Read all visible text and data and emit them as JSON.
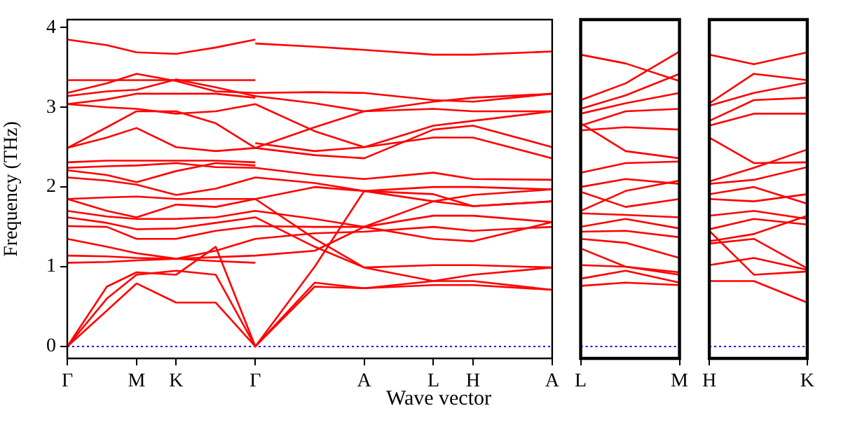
{
  "chart_data": [
    {
      "type": "line",
      "xlabel": "Wave vector",
      "ylabel": "Frequency (THz)",
      "marker": "none",
      "categories": [
        "Γ",
        null,
        null,
        null,
        null,
        null,
        null,
        "M",
        null,
        null,
        null,
        "K",
        null,
        null,
        null,
        null,
        null,
        null,
        null,
        "Γ",
        null,
        null,
        null,
        null,
        null,
        null,
        null,
        null,
        null,
        null,
        "A",
        null,
        null,
        null,
        null,
        null,
        null,
        "L",
        null,
        null,
        null,
        "H",
        null,
        null,
        null,
        null,
        null,
        null,
        null,
        "A"
      ],
      "ylim": [
        -0.15,
        4.1
      ],
      "yticks": [
        0,
        1,
        2,
        3,
        4
      ],
      "ref_lines": [
        {
          "axis": "y",
          "value": 0,
          "color": "#0000ff",
          "line_style": "dotted"
        }
      ],
      "series": [
        {
          "color": "#ff0000",
          "values": [
            3.85,
            null,
            null,
            null,
            3.78,
            null,
            null,
            3.69,
            null,
            null,
            null,
            3.67,
            null,
            null,
            null,
            3.75,
            null,
            null,
            null,
            3.85,
            null,
            null,
            null,
            null,
            null,
            null,
            null,
            null,
            null,
            null,
            null,
            null,
            null,
            null,
            null,
            null,
            null,
            null,
            null,
            null,
            null,
            null,
            null,
            null,
            null,
            null,
            null,
            null,
            null,
            null
          ]
        },
        {
          "color": "#ff0000",
          "values": [
            null,
            null,
            null,
            null,
            null,
            null,
            null,
            null,
            null,
            null,
            null,
            null,
            null,
            null,
            null,
            null,
            null,
            null,
            null,
            3.8,
            null,
            null,
            null,
            null,
            null,
            3.76,
            null,
            null,
            null,
            null,
            3.72,
            null,
            null,
            null,
            null,
            null,
            null,
            3.66,
            null,
            null,
            null,
            3.66,
            null,
            null,
            null,
            null,
            null,
            null,
            null,
            3.7
          ]
        },
        {
          "color": "#ff0000",
          "values": [
            3.34,
            null,
            null,
            null,
            3.34,
            null,
            null,
            3.34,
            null,
            null,
            null,
            3.34,
            null,
            null,
            null,
            3.34,
            null,
            null,
            null,
            3.34,
            null,
            null,
            null,
            null,
            null,
            null,
            null,
            null,
            null,
            null,
            null,
            null,
            null,
            null,
            null,
            null,
            null,
            null,
            null,
            null,
            null,
            null,
            null,
            null,
            null,
            null,
            null,
            null,
            null,
            null
          ]
        },
        {
          "color": "#ff0000",
          "values": [
            3.18,
            null,
            null,
            null,
            3.3,
            null,
            null,
            3.42,
            null,
            null,
            null,
            3.33,
            null,
            null,
            null,
            3.2,
            null,
            null,
            null,
            3.18,
            null,
            null,
            null,
            null,
            null,
            3.19,
            null,
            null,
            null,
            null,
            3.18,
            null,
            null,
            null,
            null,
            null,
            null,
            3.09,
            null,
            null,
            null,
            3.07,
            null,
            null,
            null,
            null,
            null,
            null,
            null,
            3.17
          ]
        },
        {
          "color": "#ff0000",
          "values": [
            3.14,
            null,
            null,
            null,
            3.2,
            null,
            null,
            3.22,
            null,
            null,
            null,
            3.35,
            null,
            null,
            null,
            3.25,
            null,
            null,
            null,
            3.14,
            null,
            null,
            null,
            null,
            null,
            3.05,
            null,
            null,
            null,
            null,
            2.95,
            null,
            null,
            null,
            null,
            null,
            null,
            3.07,
            null,
            null,
            null,
            3.12,
            null,
            null,
            null,
            null,
            null,
            null,
            null,
            3.17
          ]
        },
        {
          "color": "#ff0000",
          "values": [
            3.04,
            null,
            null,
            null,
            3.1,
            null,
            null,
            3.17,
            null,
            null,
            null,
            3.17,
            null,
            null,
            null,
            3.17,
            null,
            null,
            null,
            3.12,
            null,
            null,
            null,
            null,
            null,
            null,
            null,
            null,
            null,
            null,
            null,
            null,
            null,
            null,
            null,
            null,
            null,
            null,
            null,
            null,
            null,
            null,
            null,
            null,
            null,
            null,
            null,
            null,
            null,
            null
          ]
        },
        {
          "color": "#ff0000",
          "values": [
            3.04,
            null,
            null,
            null,
            3.0,
            null,
            null,
            2.98,
            null,
            null,
            null,
            2.92,
            null,
            null,
            null,
            2.95,
            null,
            null,
            null,
            3.04,
            null,
            null,
            null,
            null,
            null,
            2.7,
            null,
            null,
            null,
            null,
            2.5,
            null,
            null,
            null,
            null,
            null,
            null,
            2.77,
            null,
            null,
            null,
            2.83,
            null,
            null,
            null,
            null,
            null,
            null,
            null,
            2.95
          ]
        },
        {
          "color": "#ff0000",
          "values": [
            2.49,
            null,
            null,
            null,
            2.75,
            null,
            null,
            2.95,
            null,
            null,
            null,
            2.95,
            null,
            null,
            null,
            2.8,
            null,
            null,
            null,
            2.49,
            null,
            null,
            null,
            null,
            null,
            2.75,
            null,
            null,
            null,
            null,
            2.95,
            null,
            null,
            null,
            null,
            null,
            null,
            2.98,
            null,
            null,
            null,
            2.95,
            null,
            null,
            null,
            null,
            null,
            null,
            null,
            2.95
          ]
        },
        {
          "color": "#ff0000",
          "values": [
            2.49,
            null,
            null,
            null,
            2.62,
            null,
            null,
            2.74,
            null,
            null,
            null,
            2.5,
            null,
            null,
            null,
            2.45,
            null,
            null,
            null,
            2.49,
            null,
            null,
            null,
            null,
            null,
            2.4,
            null,
            null,
            null,
            null,
            2.36,
            null,
            null,
            null,
            null,
            null,
            null,
            2.72,
            null,
            null,
            null,
            2.77,
            null,
            null,
            null,
            null,
            null,
            null,
            null,
            2.5
          ]
        },
        {
          "color": "#ff0000",
          "values": [
            null,
            null,
            null,
            null,
            null,
            null,
            null,
            null,
            null,
            null,
            null,
            null,
            null,
            null,
            null,
            null,
            null,
            null,
            null,
            2.55,
            null,
            null,
            null,
            null,
            null,
            2.45,
            null,
            null,
            null,
            null,
            2.5,
            null,
            null,
            null,
            null,
            null,
            null,
            2.62,
            null,
            null,
            null,
            2.62,
            null,
            null,
            null,
            null,
            null,
            null,
            null,
            2.36
          ]
        },
        {
          "color": "#ff0000",
          "values": [
            2.31,
            null,
            null,
            null,
            2.33,
            null,
            null,
            2.33,
            null,
            null,
            null,
            2.33,
            null,
            null,
            null,
            2.33,
            null,
            null,
            null,
            2.31,
            null,
            null,
            null,
            null,
            null,
            null,
            null,
            null,
            null,
            null,
            null,
            null,
            null,
            null,
            null,
            null,
            null,
            null,
            null,
            null,
            null,
            null,
            null,
            null,
            null,
            null,
            null,
            null,
            null,
            null
          ]
        },
        {
          "color": "#ff0000",
          "values": [
            2.24,
            null,
            null,
            null,
            2.26,
            null,
            null,
            2.27,
            null,
            null,
            null,
            2.3,
            null,
            null,
            null,
            2.25,
            null,
            null,
            null,
            2.24,
            null,
            null,
            null,
            null,
            null,
            2.15,
            null,
            null,
            null,
            null,
            2.1,
            null,
            null,
            null,
            null,
            null,
            null,
            2.18,
            null,
            null,
            null,
            2.1,
            null,
            null,
            null,
            null,
            null,
            null,
            null,
            2.09
          ]
        },
        {
          "color": "#ff0000",
          "values": [
            2.21,
            null,
            null,
            null,
            2.15,
            null,
            null,
            2.06,
            null,
            null,
            null,
            2.2,
            null,
            null,
            null,
            2.3,
            null,
            null,
            null,
            2.27,
            null,
            null,
            null,
            null,
            null,
            null,
            null,
            null,
            null,
            null,
            null,
            null,
            null,
            null,
            null,
            null,
            null,
            null,
            null,
            null,
            null,
            null,
            null,
            null,
            null,
            null,
            null,
            null,
            null,
            null
          ]
        },
        {
          "color": "#ff0000",
          "values": [
            2.12,
            null,
            null,
            null,
            2.08,
            null,
            null,
            2.03,
            null,
            null,
            null,
            1.9,
            null,
            null,
            null,
            1.98,
            null,
            null,
            null,
            2.12,
            null,
            null,
            null,
            null,
            null,
            2.05,
            null,
            null,
            null,
            null,
            1.95,
            null,
            null,
            null,
            null,
            null,
            null,
            2.0,
            null,
            null,
            null,
            2.0,
            null,
            null,
            null,
            null,
            null,
            null,
            null,
            1.97
          ]
        },
        {
          "color": "#ff0000",
          "values": [
            1.85,
            null,
            null,
            null,
            1.87,
            null,
            null,
            1.88,
            null,
            null,
            null,
            1.85,
            null,
            null,
            null,
            1.85,
            null,
            null,
            null,
            1.85,
            null,
            null,
            null,
            null,
            null,
            2.0,
            null,
            null,
            null,
            null,
            1.95,
            null,
            null,
            null,
            null,
            null,
            null,
            1.91,
            null,
            null,
            null,
            1.76,
            null,
            null,
            null,
            null,
            null,
            null,
            null,
            1.82
          ]
        },
        {
          "color": "#ff0000",
          "values": [
            1.85,
            null,
            null,
            null,
            1.7,
            null,
            null,
            1.62,
            null,
            null,
            null,
            1.78,
            null,
            null,
            null,
            1.75,
            null,
            null,
            null,
            1.85,
            null,
            null,
            null,
            null,
            null,
            1.35,
            null,
            null,
            null,
            null,
            0.99,
            null,
            null,
            null,
            null,
            null,
            null,
            0.82,
            null,
            null,
            null,
            0.9,
            null,
            null,
            null,
            null,
            null,
            null,
            null,
            0.99
          ]
        },
        {
          "color": "#ff0000",
          "values": [
            1.7,
            null,
            null,
            null,
            1.63,
            null,
            null,
            1.6,
            null,
            null,
            null,
            1.6,
            null,
            null,
            null,
            1.62,
            null,
            null,
            null,
            1.7,
            null,
            null,
            null,
            null,
            null,
            1.6,
            null,
            null,
            null,
            null,
            1.5,
            null,
            null,
            null,
            null,
            null,
            null,
            1.82,
            null,
            null,
            null,
            1.9,
            null,
            null,
            null,
            null,
            null,
            null,
            null,
            1.97
          ]
        },
        {
          "color": "#ff0000",
          "values": [
            1.62,
            null,
            null,
            null,
            1.55,
            null,
            null,
            1.47,
            null,
            null,
            null,
            1.48,
            null,
            null,
            null,
            1.55,
            null,
            null,
            null,
            1.62,
            null,
            null,
            null,
            null,
            null,
            1.25,
            null,
            null,
            null,
            null,
            0.99,
            null,
            null,
            null,
            null,
            null,
            null,
            1.02,
            null,
            null,
            null,
            1.02,
            null,
            null,
            null,
            null,
            null,
            null,
            null,
            0.99
          ]
        },
        {
          "color": "#ff0000",
          "values": [
            1.51,
            null,
            null,
            null,
            1.5,
            null,
            null,
            1.35,
            null,
            null,
            null,
            1.35,
            null,
            null,
            null,
            1.45,
            null,
            null,
            null,
            1.51,
            null,
            null,
            null,
            null,
            null,
            1.5,
            null,
            null,
            null,
            null,
            1.5,
            null,
            null,
            null,
            null,
            null,
            null,
            1.64,
            null,
            null,
            null,
            1.64,
            null,
            null,
            null,
            null,
            null,
            null,
            null,
            1.56
          ]
        },
        {
          "color": "#ff0000",
          "values": [
            1.35,
            null,
            null,
            null,
            1.25,
            null,
            null,
            1.17,
            null,
            null,
            null,
            1.1,
            null,
            null,
            null,
            1.2,
            null,
            null,
            null,
            1.35,
            null,
            null,
            null,
            null,
            null,
            1.42,
            null,
            null,
            null,
            null,
            1.44,
            null,
            null,
            null,
            null,
            null,
            null,
            1.5,
            null,
            null,
            null,
            1.45,
            null,
            null,
            null,
            null,
            null,
            null,
            null,
            1.5
          ]
        },
        {
          "color": "#ff0000",
          "values": [
            1.14,
            null,
            null,
            null,
            1.13,
            null,
            null,
            1.11,
            null,
            null,
            null,
            1.1,
            null,
            null,
            null,
            1.12,
            null,
            null,
            null,
            1.14,
            null,
            null,
            null,
            null,
            null,
            1.2,
            null,
            null,
            null,
            null,
            1.5,
            null,
            null,
            null,
            null,
            null,
            null,
            1.35,
            null,
            null,
            null,
            1.32,
            null,
            null,
            null,
            null,
            null,
            null,
            null,
            1.56
          ]
        },
        {
          "color": "#ff0000",
          "values": [
            1.05,
            null,
            null,
            null,
            1.06,
            null,
            null,
            1.08,
            null,
            null,
            null,
            1.1,
            null,
            null,
            null,
            1.07,
            null,
            null,
            null,
            1.05,
            null,
            null,
            null,
            null,
            null,
            null,
            null,
            null,
            null,
            null,
            null,
            null,
            null,
            null,
            null,
            null,
            null,
            null,
            null,
            null,
            null,
            null,
            null,
            null,
            null,
            null,
            null,
            null,
            null,
            null
          ]
        },
        {
          "color": "#ff0000",
          "values": [
            0,
            null,
            null,
            null,
            0.75,
            null,
            null,
            0.93,
            null,
            null,
            null,
            0.9,
            null,
            null,
            null,
            1.25,
            null,
            null,
            null,
            0,
            null,
            null,
            null,
            null,
            null,
            1.0,
            null,
            null,
            null,
            null,
            1.95,
            null,
            null,
            null,
            null,
            null,
            null,
            1.82,
            null,
            null,
            null,
            1.76,
            null,
            null,
            null,
            null,
            null,
            null,
            null,
            1.82
          ]
        },
        {
          "color": "#ff0000",
          "values": [
            0,
            null,
            null,
            null,
            0.6,
            null,
            null,
            0.9,
            null,
            null,
            null,
            0.95,
            null,
            null,
            null,
            0.9,
            null,
            null,
            null,
            0,
            null,
            null,
            null,
            null,
            null,
            0.8,
            null,
            null,
            null,
            null,
            0.73,
            null,
            null,
            null,
            null,
            null,
            null,
            0.77,
            null,
            null,
            null,
            0.77,
            null,
            null,
            null,
            null,
            null,
            null,
            null,
            0.71
          ]
        },
        {
          "color": "#ff0000",
          "values": [
            0,
            null,
            null,
            null,
            0.45,
            null,
            null,
            0.79,
            null,
            null,
            null,
            0.55,
            null,
            null,
            null,
            0.55,
            null,
            null,
            null,
            0,
            null,
            null,
            null,
            null,
            null,
            0.75,
            null,
            null,
            null,
            null,
            0.73,
            null,
            null,
            null,
            null,
            null,
            null,
            0.82,
            null,
            null,
            null,
            0.82,
            null,
            null,
            null,
            null,
            null,
            null,
            null,
            0.71
          ]
        }
      ]
    },
    {
      "type": "line",
      "marker": "none",
      "tick_labels": "x",
      "categories": [
        "L",
        null,
        null,
        null,
        null,
        null,
        null,
        null,
        null,
        null,
        null,
        "M"
      ],
      "ylim": [
        -0.15,
        4.1
      ],
      "yticks": [
        0,
        1,
        2,
        3,
        4
      ],
      "ref_lines": [
        {
          "axis": "y",
          "value": 0,
          "color": "#0000ff",
          "line_style": "dotted"
        }
      ],
      "series": [
        {
          "color": "#ff0000",
          "values": [
            3.66,
            null,
            null,
            null,
            null,
            3.55,
            null,
            null,
            null,
            null,
            null,
            3.33
          ]
        },
        {
          "color": "#ff0000",
          "values": [
            3.09,
            null,
            null,
            null,
            null,
            3.3,
            null,
            null,
            null,
            null,
            null,
            3.7
          ]
        },
        {
          "color": "#ff0000",
          "values": [
            2.98,
            null,
            null,
            null,
            null,
            3.15,
            null,
            null,
            null,
            null,
            null,
            3.42
          ]
        },
        {
          "color": "#ff0000",
          "values": [
            2.92,
            null,
            null,
            null,
            null,
            3.05,
            null,
            null,
            null,
            null,
            null,
            3.18
          ]
        },
        {
          "color": "#ff0000",
          "values": [
            2.77,
            null,
            null,
            null,
            null,
            2.95,
            null,
            null,
            null,
            null,
            null,
            2.98
          ]
        },
        {
          "color": "#ff0000",
          "values": [
            2.71,
            null,
            null,
            null,
            null,
            2.75,
            null,
            null,
            null,
            null,
            null,
            2.72
          ]
        },
        {
          "color": "#ff0000",
          "values": [
            2.8,
            null,
            null,
            null,
            null,
            2.45,
            null,
            null,
            null,
            null,
            null,
            2.36
          ]
        },
        {
          "color": "#ff0000",
          "values": [
            2.18,
            null,
            null,
            null,
            null,
            2.3,
            null,
            null,
            null,
            null,
            null,
            2.32
          ]
        },
        {
          "color": "#ff0000",
          "values": [
            2.0,
            null,
            null,
            null,
            null,
            2.1,
            null,
            null,
            null,
            null,
            null,
            2.04
          ]
        },
        {
          "color": "#ff0000",
          "values": [
            1.94,
            null,
            null,
            null,
            null,
            1.75,
            null,
            null,
            null,
            null,
            null,
            1.85
          ]
        },
        {
          "color": "#ff0000",
          "values": [
            1.7,
            null,
            null,
            null,
            null,
            1.95,
            null,
            null,
            null,
            null,
            null,
            2.08
          ]
        },
        {
          "color": "#ff0000",
          "values": [
            1.67,
            null,
            null,
            null,
            null,
            1.65,
            null,
            null,
            null,
            null,
            null,
            1.62
          ]
        },
        {
          "color": "#ff0000",
          "values": [
            1.5,
            null,
            null,
            null,
            null,
            1.6,
            null,
            null,
            null,
            null,
            null,
            1.48
          ]
        },
        {
          "color": "#ff0000",
          "values": [
            1.44,
            null,
            null,
            null,
            null,
            1.45,
            null,
            null,
            null,
            null,
            null,
            1.37
          ]
        },
        {
          "color": "#ff0000",
          "values": [
            1.35,
            null,
            null,
            null,
            null,
            1.3,
            null,
            null,
            null,
            null,
            null,
            1.11
          ]
        },
        {
          "color": "#ff0000",
          "values": [
            1.23,
            null,
            null,
            null,
            null,
            1.0,
            null,
            null,
            null,
            null,
            null,
            0.93
          ]
        },
        {
          "color": "#ff0000",
          "values": [
            1.02,
            null,
            null,
            null,
            null,
            1.0,
            null,
            null,
            null,
            null,
            null,
            0.9
          ]
        },
        {
          "color": "#ff0000",
          "values": [
            0.85,
            null,
            null,
            null,
            null,
            0.95,
            null,
            null,
            null,
            null,
            null,
            0.8
          ]
        },
        {
          "color": "#ff0000",
          "values": [
            0.76,
            null,
            null,
            null,
            null,
            0.8,
            null,
            null,
            null,
            null,
            null,
            0.77
          ]
        }
      ]
    },
    {
      "type": "line",
      "marker": "none",
      "tick_labels": "x",
      "categories": [
        "H",
        null,
        null,
        null,
        null,
        null,
        null,
        null,
        null,
        null,
        null,
        "K"
      ],
      "ylim": [
        -0.15,
        4.1
      ],
      "yticks": [
        0,
        1,
        2,
        3,
        4
      ],
      "ref_lines": [
        {
          "axis": "y",
          "value": 0,
          "color": "#0000ff",
          "line_style": "dotted"
        }
      ],
      "series": [
        {
          "color": "#ff0000",
          "values": [
            3.66,
            null,
            null,
            null,
            null,
            3.54,
            null,
            null,
            null,
            null,
            null,
            3.69
          ]
        },
        {
          "color": "#ff0000",
          "values": [
            3.05,
            null,
            null,
            null,
            null,
            3.42,
            null,
            null,
            null,
            null,
            null,
            3.34
          ]
        },
        {
          "color": "#ff0000",
          "values": [
            3.02,
            null,
            null,
            null,
            null,
            3.18,
            null,
            null,
            null,
            null,
            null,
            3.31
          ]
        },
        {
          "color": "#ff0000",
          "values": [
            2.83,
            null,
            null,
            null,
            null,
            3.09,
            null,
            null,
            null,
            null,
            null,
            3.12
          ]
        },
        {
          "color": "#ff0000",
          "values": [
            2.77,
            null,
            null,
            null,
            null,
            2.92,
            null,
            null,
            null,
            null,
            null,
            2.92
          ]
        },
        {
          "color": "#ff0000",
          "values": [
            2.62,
            null,
            null,
            null,
            null,
            2.3,
            null,
            null,
            null,
            null,
            null,
            2.31
          ]
        },
        {
          "color": "#ff0000",
          "values": [
            2.07,
            null,
            null,
            null,
            null,
            2.24,
            null,
            null,
            null,
            null,
            null,
            2.47
          ]
        },
        {
          "color": "#ff0000",
          "values": [
            2.04,
            null,
            null,
            null,
            null,
            2.09,
            null,
            null,
            null,
            null,
            null,
            2.25
          ]
        },
        {
          "color": "#ff0000",
          "values": [
            1.91,
            null,
            null,
            null,
            null,
            2.0,
            null,
            null,
            null,
            null,
            null,
            1.79
          ]
        },
        {
          "color": "#ff0000",
          "values": [
            1.85,
            null,
            null,
            null,
            null,
            1.82,
            null,
            null,
            null,
            null,
            null,
            1.91
          ]
        },
        {
          "color": "#ff0000",
          "values": [
            1.64,
            null,
            null,
            null,
            null,
            1.7,
            null,
            null,
            null,
            null,
            null,
            1.6
          ]
        },
        {
          "color": "#ff0000",
          "values": [
            1.47,
            null,
            null,
            null,
            null,
            1.6,
            null,
            null,
            null,
            null,
            null,
            1.53
          ]
        },
        {
          "color": "#ff0000",
          "values": [
            1.32,
            null,
            null,
            null,
            null,
            1.41,
            null,
            null,
            null,
            null,
            null,
            1.64
          ]
        },
        {
          "color": "#ff0000",
          "values": [
            1.29,
            null,
            null,
            null,
            null,
            1.35,
            null,
            null,
            null,
            null,
            null,
            0.98
          ]
        },
        {
          "color": "#ff0000",
          "values": [
            1.02,
            null,
            null,
            null,
            null,
            1.11,
            null,
            null,
            null,
            null,
            null,
            0.96
          ]
        },
        {
          "color": "#ff0000",
          "values": [
            0.82,
            null,
            null,
            null,
            null,
            0.82,
            null,
            null,
            null,
            null,
            null,
            0.55
          ]
        },
        {
          "color": "#ff0000",
          "values": [
            1.45,
            null,
            null,
            null,
            null,
            0.9,
            null,
            null,
            null,
            null,
            null,
            0.94
          ]
        }
      ]
    }
  ]
}
